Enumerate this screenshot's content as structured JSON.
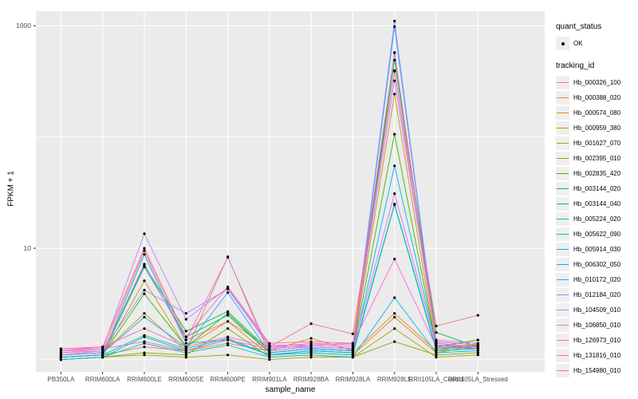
{
  "figure": {
    "panel_bg": "#EBEBEB",
    "grid_color": "#FFFFFF",
    "tick_label_color": "#4D4D4D",
    "tick_mark_color": "#333333",
    "point_color": "#000000"
  },
  "chart_data": {
    "type": "line",
    "title": "",
    "xlabel": "sample_name",
    "ylabel": "FPKM + 1",
    "y_scale": "log10",
    "ylim": [
      0.775,
      1350
    ],
    "y_ticks": [
      {
        "value": 10,
        "label": "10"
      },
      {
        "value": 1000,
        "label": "1000"
      }
    ],
    "y_minor_breaks": [
      1,
      100
    ],
    "grid": true,
    "legend_position": "right",
    "categories": [
      "PB350LA",
      "RRIM600LA",
      "RRIM600LE",
      "RRIM600SE",
      "RRIM600PE",
      "RRIM901LA",
      "RRIM928BA",
      "RRIM928LA",
      "RRIM928LE",
      "RRII105LA_Control",
      "RRII105LA_Stressed"
    ],
    "series": [
      {
        "name": "Hb_000326_100",
        "color": "#F8766D",
        "values": [
          1.15,
          1.2,
          9.5,
          1.5,
          2.2,
          1.3,
          2.1,
          1.7,
          390,
          2.0,
          2.5
        ]
      },
      {
        "name": "Hb_000388_020",
        "color": "#EA8331",
        "values": [
          1.05,
          1.1,
          1.3,
          1.2,
          8.4,
          1.1,
          1.2,
          1.15,
          2.6,
          1.2,
          1.4
        ]
      },
      {
        "name": "Hb_000574_080",
        "color": "#D89000",
        "values": [
          1.05,
          1.1,
          5.1,
          1.3,
          2.2,
          1.1,
          1.15,
          1.1,
          2.4,
          1.15,
          1.35
        ]
      },
      {
        "name": "Hb_000959_380",
        "color": "#C09B00",
        "values": [
          1.1,
          1.15,
          2.6,
          1.2,
          1.4,
          1.2,
          1.55,
          1.2,
          243,
          1.25,
          1.35
        ]
      },
      {
        "name": "Hb_001627_070",
        "color": "#A3A500",
        "values": [
          1.0,
          1.05,
          1.1,
          1.05,
          1.1,
          1.0,
          1.05,
          1.05,
          1.9,
          1.05,
          1.1
        ]
      },
      {
        "name": "Hb_002395_010",
        "color": "#7CAE00",
        "values": [
          1.0,
          1.05,
          1.15,
          1.1,
          1.9,
          1.05,
          1.1,
          1.05,
          1.45,
          1.1,
          1.15
        ]
      },
      {
        "name": "Hb_002835_420",
        "color": "#39B600",
        "values": [
          1.05,
          1.1,
          3.9,
          1.3,
          2.6,
          1.15,
          1.25,
          1.2,
          106,
          1.3,
          1.5
        ]
      },
      {
        "name": "Hb_003144_020",
        "color": "#00BB4E",
        "values": [
          1.1,
          1.15,
          7.0,
          1.8,
          2.7,
          1.2,
          1.3,
          1.25,
          490,
          1.75,
          1.3
        ]
      },
      {
        "name": "Hb_003144_040",
        "color": "#00BF7D",
        "values": [
          1.05,
          1.1,
          6.8,
          1.6,
          2.5,
          1.15,
          1.25,
          1.2,
          570,
          1.35,
          1.25
        ]
      },
      {
        "name": "Hb_005224_020",
        "color": "#00C1A3",
        "values": [
          1.0,
          1.05,
          1.6,
          1.2,
          1.5,
          1.1,
          1.15,
          1.1,
          24.5,
          1.2,
          1.25
        ]
      },
      {
        "name": "Hb_005622_090",
        "color": "#00BFC4",
        "values": [
          1.05,
          1.1,
          1.65,
          1.25,
          1.55,
          1.1,
          1.2,
          1.15,
          25,
          1.25,
          1.3
        ]
      },
      {
        "name": "Hb_005914_030",
        "color": "#00BAE0",
        "values": [
          1.0,
          1.05,
          1.4,
          1.15,
          1.35,
          1.05,
          1.1,
          1.05,
          3.6,
          1.15,
          1.2
        ]
      },
      {
        "name": "Hb_006302_050",
        "color": "#00B0F6",
        "values": [
          1.05,
          1.1,
          8.8,
          1.4,
          1.5,
          1.1,
          1.2,
          1.15,
          55,
          1.3,
          1.25
        ]
      },
      {
        "name": "Hb_010172_020",
        "color": "#35A2FF",
        "values": [
          1.1,
          1.15,
          2.4,
          1.3,
          4.0,
          1.15,
          1.25,
          1.2,
          980,
          1.4,
          1.3
        ]
      },
      {
        "name": "Hb_012184_020",
        "color": "#9590FF",
        "values": [
          1.1,
          1.2,
          4.2,
          2.6,
          4.3,
          1.3,
          1.3,
          1.25,
          1100,
          1.45,
          1.35
        ]
      },
      {
        "name": "Hb_104509_010",
        "color": "#C77CFF",
        "values": [
          1.15,
          1.25,
          13.5,
          2.3,
          4.4,
          1.35,
          1.35,
          1.3,
          320,
          1.5,
          1.4
        ]
      },
      {
        "name": "Hb_106850_010",
        "color": "#E76BF3",
        "values": [
          1.1,
          1.15,
          7.2,
          1.5,
          8.3,
          1.2,
          1.3,
          1.25,
          31,
          1.35,
          1.3
        ]
      },
      {
        "name": "Hb_126973_010",
        "color": "#FA62DB",
        "values": [
          1.2,
          1.25,
          1.45,
          1.2,
          1.5,
          1.25,
          1.35,
          1.4,
          8.0,
          1.3,
          1.25
        ]
      },
      {
        "name": "Hb_131816_010",
        "color": "#FF62BC",
        "values": [
          1.2,
          1.3,
          1.9,
          1.3,
          1.6,
          1.3,
          1.4,
          1.35,
          395,
          1.4,
          1.3
        ]
      },
      {
        "name": "Hb_154980_010",
        "color": "#FF6A98",
        "values": [
          1.25,
          1.3,
          10.0,
          1.6,
          4.5,
          1.4,
          1.45,
          1.4,
          575,
          1.45,
          1.35
        ]
      }
    ],
    "legend": {
      "quant_status": {
        "title": "quant_status",
        "items": [
          {
            "label": "OK",
            "symbol": "point"
          }
        ]
      },
      "tracking_id": {
        "title": "tracking_id"
      }
    }
  }
}
